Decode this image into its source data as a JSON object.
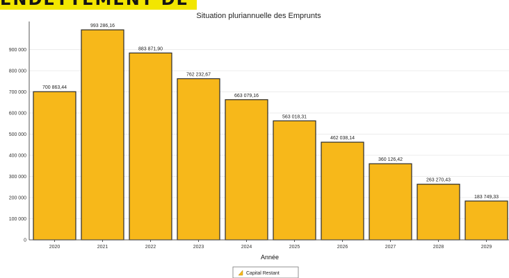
{
  "banner": {
    "text": "ENDETTEMENT DE LA VILLE"
  },
  "chart_data": {
    "type": "bar",
    "title": "Situation pluriannuelle des Emprunts",
    "xlabel": "Année",
    "ylabel": "",
    "categories": [
      "2020",
      "2021",
      "2022",
      "2023",
      "2024",
      "2025",
      "2026",
      "2027",
      "2028",
      "2029"
    ],
    "series": [
      {
        "name": "Capital Restant",
        "values": [
          700863.44,
          993286.16,
          883871.9,
          762232.67,
          663079.16,
          563018.31,
          462038.14,
          360126.42,
          263270.43,
          183749.33
        ],
        "labels": [
          "700 863,44",
          "993 286,16",
          "883 871,90",
          "762 232,67",
          "663 079,16",
          "563 018,31",
          "462 038,14",
          "360 126,42",
          "263 270,43",
          "183 749,33"
        ]
      }
    ],
    "yticks": [
      "0",
      "100 000",
      "200 000",
      "300 000",
      "400 000",
      "500 000",
      "600 000",
      "700 000",
      "800 000",
      "900 000"
    ],
    "ylim": [
      0,
      1000000
    ],
    "grid": true,
    "legend_position": "bottom-center",
    "colors": {
      "bar": "#f7b81a",
      "bar_edge": "#2a2a2a",
      "grid": "#ececec",
      "axis": "#555555"
    }
  }
}
